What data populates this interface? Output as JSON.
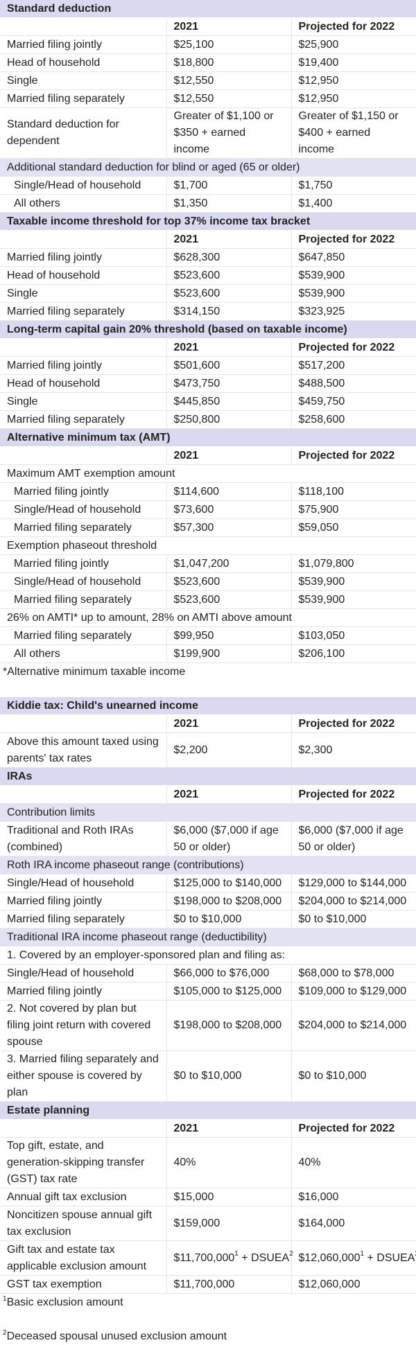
{
  "sections": {
    "std": {
      "title": "Standard deduction",
      "col1": "2021",
      "col2": "Projected for 2022",
      "rows": [
        {
          "label": "Married filing jointly",
          "v1": "$25,100",
          "v2": "$25,900"
        },
        {
          "label": "Head of household",
          "v1": "$18,800",
          "v2": "$19,400"
        },
        {
          "label": "Single",
          "v1": "$12,550",
          "v2": "$12,950"
        },
        {
          "label": "Married filing separately",
          "v1": "$12,550",
          "v2": "$12,950"
        },
        {
          "label": "Standard deduction for dependent",
          "v1": "Greater of $1,100 or $350 + earned income",
          "v2": "Greater of $1,150 or $400 + earned income"
        }
      ],
      "sub_title": "Additional standard deduction for blind or aged (65 or older)",
      "sub_rows": [
        {
          "label": "Single/Head of household",
          "v1": "$1,700",
          "v2": "$1,750"
        },
        {
          "label": "All others",
          "v1": "$1,350",
          "v2": "$1,400"
        }
      ]
    },
    "top": {
      "title": "Taxable income threshold for top 37% income tax bracket",
      "col1": "2021",
      "col2": "Projected for 2022",
      "rows": [
        {
          "label": "Married filing jointly",
          "v1": "$628,300",
          "v2": "$647,850"
        },
        {
          "label": "Head of household",
          "v1": "$523,600",
          "v2": "$539,900"
        },
        {
          "label": "Single",
          "v1": "$523,600",
          "v2": "$539,900"
        },
        {
          "label": "Married filing separately",
          "v1": "$314,150",
          "v2": "$323,925"
        }
      ]
    },
    "ltcg": {
      "title": "Long-term capital gain 20% threshold (based on taxable income)",
      "col1": "2021",
      "col2": "Projected for 2022",
      "rows": [
        {
          "label": "Married filing jointly",
          "v1": "$501,600",
          "v2": "$517,200"
        },
        {
          "label": "Head of household",
          "v1": "$473,750",
          "v2": "$488,500"
        },
        {
          "label": "Single",
          "v1": "$445,850",
          "v2": "$459,750"
        },
        {
          "label": "Married filing separately",
          "v1": "$250,800",
          "v2": "$258,600"
        }
      ]
    },
    "amt": {
      "title": "Alternative minimum tax (AMT)",
      "col1": "2021",
      "col2": "Projected for 2022",
      "g1_title": "Maximum AMT exemption amount",
      "g1_rows": [
        {
          "label": "Married filing jointly",
          "v1": "$114,600",
          "v2": "$118,100"
        },
        {
          "label": "Single/Head of household",
          "v1": "$73,600",
          "v2": "$75,900"
        },
        {
          "label": "Married filing separately",
          "v1": "$57,300",
          "v2": "$59,050"
        }
      ],
      "g2_title": "Exemption phaseout threshold",
      "g2_rows": [
        {
          "label": "Married filing jointly",
          "v1": "$1,047,200",
          "v2": "$1,079,800"
        },
        {
          "label": "Single/Head of household",
          "v1": "$523,600",
          "v2": "$539,900"
        },
        {
          "label": "Married filing separately",
          "v1": "$523,600",
          "v2": "$539,900"
        }
      ],
      "g3_title": "26% on AMTI* up to amount, 28% on AMTI above amount",
      "g3_rows": [
        {
          "label": "Married filing separately",
          "v1": "$99,950",
          "v2": "$103,050"
        },
        {
          "label": "All others",
          "v1": "$199,900",
          "v2": "$206,100"
        }
      ],
      "note": "*Alternative minimum taxable income"
    },
    "kiddie": {
      "title": "Kiddie tax: Child's unearned income",
      "col1": "2021",
      "col2": "Projected for 2022",
      "rows": [
        {
          "label": "Above this amount taxed using parents' tax rates",
          "v1": "$2,200",
          "v2": "$2,300"
        }
      ]
    },
    "ira": {
      "title": "IRAs",
      "col1": "2021",
      "col2": "Projected for 2022",
      "g1_title": "Contribution limits",
      "g1_rows": [
        {
          "label": "Traditional and Roth IRAs (combined)",
          "v1": "$6,000 ($7,000 if age 50 or older)",
          "v2": "$6,000 ($7,000 if age 50 or older)"
        }
      ],
      "g2_title": "Roth IRA income phaseout range (contributions)",
      "g2_rows": [
        {
          "label": "Single/Head of household",
          "v1": "$125,000 to $140,000",
          "v2": "$129,000 to $144,000"
        },
        {
          "label": "Married filing jointly",
          "v1": "$198,000 to $208,000",
          "v2": "$204,000 to $214,000"
        },
        {
          "label": "Married filing separately",
          "v1": "$0 to $10,000",
          "v2": "$0 to $10,000"
        }
      ],
      "g3_title": "Traditional IRA income phaseout range (deductibility)",
      "g3_sub": "1. Covered by an employer-sponsored plan and filing as:",
      "g3_rows": [
        {
          "label": "Single/Head of household",
          "v1": "$66,000 to $76,000",
          "v2": "$68,000 to $78,000"
        },
        {
          "label": "Married filing jointly",
          "v1": "$105,000 to $125,000",
          "v2": "$109,000 to $129,000"
        }
      ],
      "g3_tall": [
        {
          "label": "2. Not covered by plan but filing joint return with covered spouse",
          "v1": "$198,000 to $208,000",
          "v2": "$204,000 to $214,000"
        },
        {
          "label": "3. Married filing separately and either spouse is covered by plan",
          "v1": "$0 to $10,000",
          "v2": "$0 to $10,000"
        }
      ]
    },
    "estate": {
      "title": "Estate planning",
      "col1": "2021",
      "col2": "Projected for 2022",
      "r1": {
        "label": "Top gift, estate, and generation-skipping transfer (GST) tax rate",
        "v1": "40%",
        "v2": "40%"
      },
      "r2": {
        "label": "Annual gift tax exclusion",
        "v1": "$15,000",
        "v2": "$16,000"
      },
      "r3": {
        "label": "Noncitizen spouse annual gift tax exclusion",
        "v1": "$159,000",
        "v2": "$164,000"
      },
      "r4": {
        "label": "Gift tax and estate tax applicable exclusion amount",
        "v1_main": "$11,700,000",
        "v2_main": "$12,060,000",
        "sup1": "1",
        "plus": " + DSUEA",
        "sup2": "2"
      },
      "r5": {
        "label": "GST tax exemption",
        "v1": "$11,700,000",
        "v2": "$12,060,000"
      },
      "fn1_num": "1",
      "fn1": "Basic exclusion amount",
      "fn2_num": "2",
      "fn2": "Deceased spousal unused exclusion amount"
    }
  }
}
